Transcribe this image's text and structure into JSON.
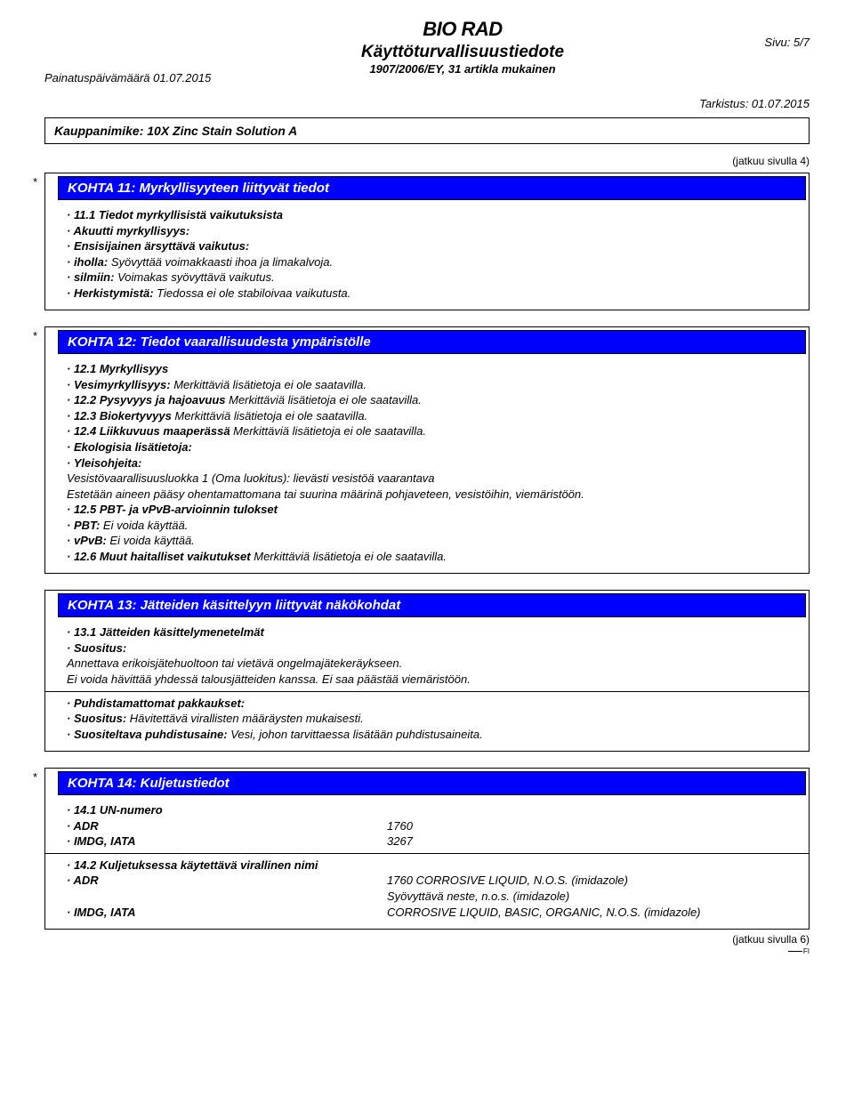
{
  "header": {
    "logo_text": "BIO RAD",
    "title": "Käyttöturvallisuustiedote",
    "subtitle": "1907/2006/EY, 31 artikla mukainen",
    "page_label": "Sivu: 5/7",
    "print_date": "Painatuspäivämäärä 01.07.2015",
    "revision": "Tarkistus: 01.07.2015",
    "trade_name": "Kauppanimike: 10X Zinc Stain Solution A",
    "continued_from": "(jatkuu sivulla 4)"
  },
  "colors": {
    "section_header_bg": "#0000ff",
    "section_header_fg": "#ffffff",
    "border": "#000000",
    "text": "#000000",
    "background": "#ffffff"
  },
  "section11": {
    "asterisk": "*",
    "title": "KOHTA 11: Myrkyllisyyteen liittyvät tiedot",
    "l1": "· 11.1 Tiedot myrkyllisistä vaikutuksista",
    "l2": "· Akuutti myrkyllisyys:",
    "l3": "· Ensisijainen ärsyttävä vaikutus:",
    "l4_label": "· iholla:",
    "l4_value": " Syövyttää voimakkaasti ihoa ja limakalvoja.",
    "l5_label": "· silmiin:",
    "l5_value": " Voimakas syövyttävä vaikutus.",
    "l6_label": "· Herkistymistä:",
    "l6_value": " Tiedossa ei ole stabiloivaa vaikutusta."
  },
  "section12": {
    "asterisk": "*",
    "title": "KOHTA 12: Tiedot vaarallisuudesta ympäristölle",
    "l1": "· 12.1 Myrkyllisyys",
    "l2_label": "· Vesimyrkyllisyys:",
    "l2_value": " Merkittäviä lisätietoja ei ole saatavilla.",
    "l3_label": "· 12.2 Pysyvyys ja hajoavuus",
    "l3_value": " Merkittäviä lisätietoja ei ole saatavilla.",
    "l4_label": "· 12.3 Biokertyvyys",
    "l4_value": " Merkittäviä lisätietoja ei ole saatavilla.",
    "l5_label": "· 12.4 Liikkuvuus maaperässä",
    "l5_value": " Merkittäviä lisätietoja ei ole saatavilla.",
    "l6": "· Ekologisia lisätietoja:",
    "l7": "· Yleisohjeita:",
    "l8": "Vesistövaarallisuusluokka 1 (Oma luokitus): lievästi vesistöä vaarantava",
    "l9": "Estetään aineen pääsy ohentamattomana tai suurina määrinä pohjaveteen, vesistöihin, viemäristöön.",
    "l10": "· 12.5 PBT- ja vPvB-arvioinnin tulokset",
    "l11_label": "· PBT:",
    "l11_value": " Ei voida käyttää.",
    "l12_label": "· vPvB:",
    "l12_value": " Ei voida käyttää.",
    "l13_label": "· 12.6 Muut haitalliset vaikutukset",
    "l13_value": " Merkittäviä lisätietoja ei ole saatavilla."
  },
  "section13": {
    "title": "KOHTA 13: Jätteiden käsittelyyn liittyvät näkökohdat",
    "l1": "· 13.1 Jätteiden käsittelymenetelmät",
    "l2": "· Suositus:",
    "l3": "Annettava erikoisjätehuoltoon tai vietävä ongelmajätekeräykseen.",
    "l4": "Ei voida hävittää yhdessä talousjätteiden kanssa. Ei saa päästää viemäristöön.",
    "l5": "· Puhdistamattomat pakkaukset:",
    "l6_label": "· Suositus:",
    "l6_value": " Hävitettävä virallisten määräysten mukaisesti.",
    "l7_label": "· Suositeltava puhdistusaine:",
    "l7_value": " Vesi, johon tarvittaessa lisätään puhdistusaineita."
  },
  "section14": {
    "asterisk": "*",
    "title": "KOHTA 14: Kuljetustiedot",
    "l1": "· 14.1 UN-numero",
    "r1_label": "· ADR",
    "r1_value": "1760",
    "r2_label": "· IMDG, IATA",
    "r2_value": "3267",
    "l2": "· 14.2 Kuljetuksessa käytettävä virallinen nimi",
    "r3_label": "· ADR",
    "r3_value": "1760 CORROSIVE LIQUID, N.O.S. (imidazole)",
    "r3b_value": "Syövyttävä neste, n.o.s. (imidazole)",
    "r4_label": "· IMDG, IATA",
    "r4_value": "CORROSIVE LIQUID, BASIC, ORGANIC, N.O.S. (imidazole)"
  },
  "footer": {
    "continued_on": "(jatkuu sivulla 6)",
    "locale": "FI"
  }
}
